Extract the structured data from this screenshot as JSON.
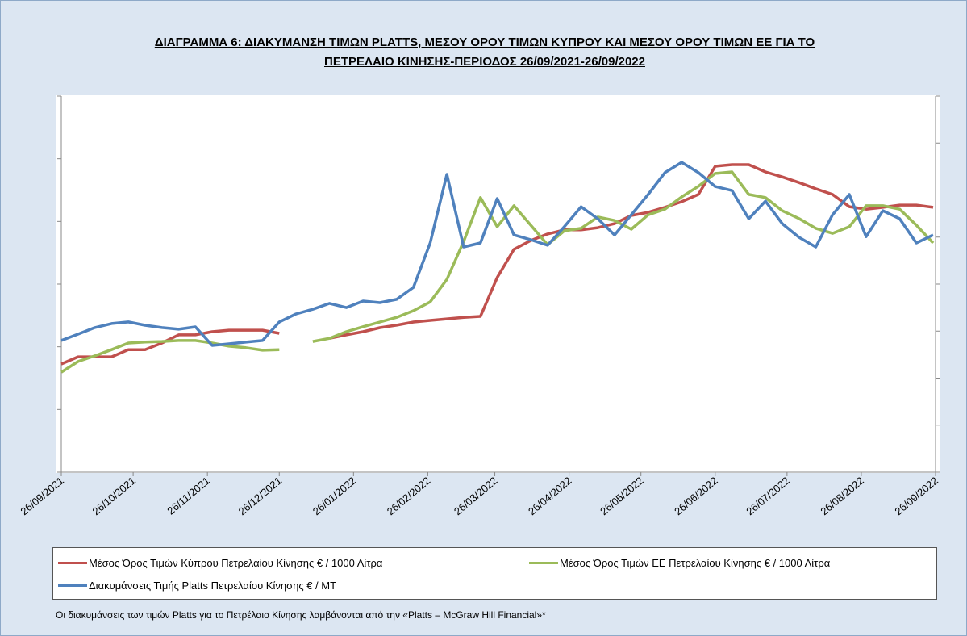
{
  "chart_data": {
    "type": "line",
    "title": "ΔΙΑΓΡΑΜΜΑ 6: ΔΙΑΚΥΜΑΝΣΗ ΤΙΜΩΝ PLATTS, ΜΕΣΟΥ ΟΡΟΥ ΤΙΜΩΝ ΚΥΠΡΟΥ ΚΑΙ ΜΕΣΟΥ ΟΡΟΥ ΤΙΜΩΝ ΕΕ ΓΙΑ ΤΟ ΠΕΤΡΕΛΑΙΟ ΚΙΝΗΣΗΣ-ΠΕΡΙΟΔΟΣ 26/09/2021-26/09/2022",
    "note": "Οι διακυμάνσεις των τιμών Platts για το Πετρέλαιο Κίνησης λαμβάνονται από την «Platts – McGraw Hill Financial»*",
    "x": [
      "2021-09-26",
      "2021-10-03",
      "2021-10-10",
      "2021-10-17",
      "2021-10-24",
      "2021-10-31",
      "2021-11-07",
      "2021-11-14",
      "2021-11-21",
      "2021-11-28",
      "2021-12-05",
      "2021-12-12",
      "2021-12-19",
      "2021-12-26",
      "2022-01-02",
      "2022-01-09",
      "2022-01-16",
      "2022-01-23",
      "2022-01-30",
      "2022-02-06",
      "2022-02-13",
      "2022-02-20",
      "2022-02-27",
      "2022-03-06",
      "2022-03-13",
      "2022-03-20",
      "2022-03-27",
      "2022-04-03",
      "2022-04-10",
      "2022-04-17",
      "2022-04-24",
      "2022-05-01",
      "2022-05-08",
      "2022-05-15",
      "2022-05-22",
      "2022-05-29",
      "2022-06-05",
      "2022-06-12",
      "2022-06-19",
      "2022-06-26",
      "2022-07-03",
      "2022-07-10",
      "2022-07-17",
      "2022-07-24",
      "2022-07-31",
      "2022-08-07",
      "2022-08-14",
      "2022-08-21",
      "2022-08-28",
      "2022-09-04",
      "2022-09-11",
      "2022-09-18",
      "2022-09-25"
    ],
    "xlim": [
      "2021-09-26",
      "2022-09-26"
    ],
    "xticks": [
      {
        "value": "2021-09-26",
        "label": "26/09/2021"
      },
      {
        "value": "2021-10-26",
        "label": "26/10/2021"
      },
      {
        "value": "2021-11-26",
        "label": "26/11/2021"
      },
      {
        "value": "2021-12-26",
        "label": "26/12/2021"
      },
      {
        "value": "2022-01-26",
        "label": "26/01/2022"
      },
      {
        "value": "2022-02-26",
        "label": "26/02/2022"
      },
      {
        "value": "2022-03-26",
        "label": "26/03/2022"
      },
      {
        "value": "2022-04-26",
        "label": "26/04/2022"
      },
      {
        "value": "2022-05-26",
        "label": "26/05/2022"
      },
      {
        "value": "2022-06-26",
        "label": "26/06/2022"
      },
      {
        "value": "2022-07-26",
        "label": "26/07/2022"
      },
      {
        "value": "2022-08-26",
        "label": "26/08/2022"
      },
      {
        "value": "2022-09-26",
        "label": "26/09/2022"
      }
    ],
    "ylim": [
      900,
      2100
    ],
    "yticks": [
      900,
      1100,
      1300,
      1500,
      1700,
      1900,
      2100
    ],
    "y2lim": [
      0,
      1600
    ],
    "y2ticks": [
      0,
      200,
      400,
      600,
      800,
      1000,
      1200,
      1400,
      1600
    ],
    "series": [
      {
        "name": "Μέσος Όρος Τιμών Κύπρου Πετρελαίου Κίνησης  € / 1000 Λίτρα",
        "color": "#c0504d",
        "values": [
          1245,
          1268,
          1268,
          1268,
          1291,
          1291,
          1312,
          1338,
          1338,
          1348,
          1353,
          1353,
          1353,
          1343,
          null,
          null,
          1327,
          1338,
          1348,
          1361,
          1369,
          1379,
          1384,
          1389,
          1394,
          1397,
          1521,
          1611,
          1639,
          1660,
          1673,
          1673,
          1680,
          1693,
          1719,
          1729,
          1745,
          1763,
          1786,
          1876,
          1881,
          1881,
          1858,
          1842,
          1824,
          1804,
          1786,
          1747,
          1739,
          1745,
          1752,
          1752,
          1745
        ]
      },
      {
        "name": "Μέσος Όρος Τιμών ΕΕ Πετρελαίου Κίνησης  € / 1000 Λίτρα",
        "color": "#9bbb59",
        "values": [
          1219,
          1253,
          1271,
          1291,
          1312,
          1315,
          1317,
          1320,
          1320,
          1312,
          1302,
          1297,
          1289,
          1291,
          null,
          1317,
          1327,
          1348,
          1364,
          1379,
          1394,
          1415,
          1443,
          1515,
          1636,
          1776,
          1683,
          1750,
          1688,
          1626,
          1670,
          1678,
          1714,
          1703,
          1675,
          1721,
          1739,
          1778,
          1812,
          1853,
          1858,
          1786,
          1776,
          1734,
          1709,
          1678,
          1662,
          1683,
          1750,
          1750,
          1739,
          1688,
          1631
        ]
      },
      {
        "name": "Διακυμάνσεις Τιμής Platts Πετρελαίου Κίνησης € / MT",
        "color": "#4f81bd",
        "axis": "y2",
        "values": [
          560,
          587,
          615,
          632,
          639,
          625,
          615,
          608,
          618,
          539,
          546,
          553,
          560,
          639,
          673,
          693,
          718,
          700,
          728,
          721,
          735,
          786,
          975,
          1267,
          958,
          975,
          1164,
          1009,
          989,
          965,
          1044,
          1129,
          1078,
          1009,
          1095,
          1181,
          1274,
          1318,
          1274,
          1215,
          1198,
          1078,
          1153,
          1057,
          999,
          958,
          1095,
          1181,
          1002,
          1112,
          1078,
          975,
          1009
        ]
      }
    ],
    "grid": false
  }
}
